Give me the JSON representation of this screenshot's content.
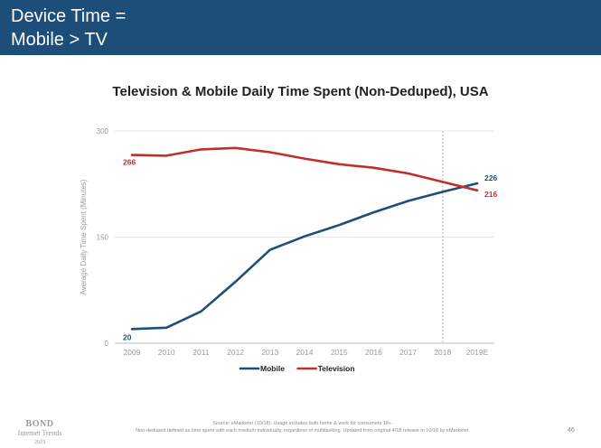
{
  "header": {
    "title_line1": "Device Time =",
    "title_line2": "Mobile > TV"
  },
  "chart_data": {
    "type": "line",
    "title": "Television & Mobile Daily Time Spent (Non-Deduped), USA",
    "ylabel": "Average Daily Time Spent (Minutes)",
    "xlabel": "",
    "categories": [
      "2009",
      "2010",
      "2011",
      "2012",
      "2013",
      "2014",
      "2015",
      "2016",
      "2017",
      "2018",
      "2019E"
    ],
    "ylim": [
      0,
      300
    ],
    "yticks": [
      0,
      150,
      300
    ],
    "grid": true,
    "legend_position": "bottom-center",
    "estimate_divider_category": "2018",
    "series": [
      {
        "name": "Mobile",
        "color": "#1f4e79",
        "values": [
          20,
          22,
          45,
          87,
          132,
          151,
          167,
          185,
          201,
          214,
          226
        ],
        "labels": [
          {
            "index": 0,
            "text": "20"
          },
          {
            "index": 10,
            "text": "226"
          }
        ]
      },
      {
        "name": "Television",
        "color": "#c0302b",
        "values": [
          266,
          265,
          274,
          276,
          270,
          261,
          253,
          248,
          240,
          228,
          216
        ],
        "labels": [
          {
            "index": 0,
            "text": "266"
          },
          {
            "index": 10,
            "text": "216"
          }
        ]
      }
    ]
  },
  "footer": {
    "logo_line1": "BOND",
    "logo_line2": "Internet Trends",
    "logo_line3": "2019",
    "source_line1": "Source: eMarketer (10/18). Usage includes both home & work for consumers 18+.",
    "source_line2": "Non-deduped defined as time spent with each medium individually, regardless of multitasking. Updated from original 4/18 release in 10/18 by eMarketer.",
    "page_number": "46"
  }
}
